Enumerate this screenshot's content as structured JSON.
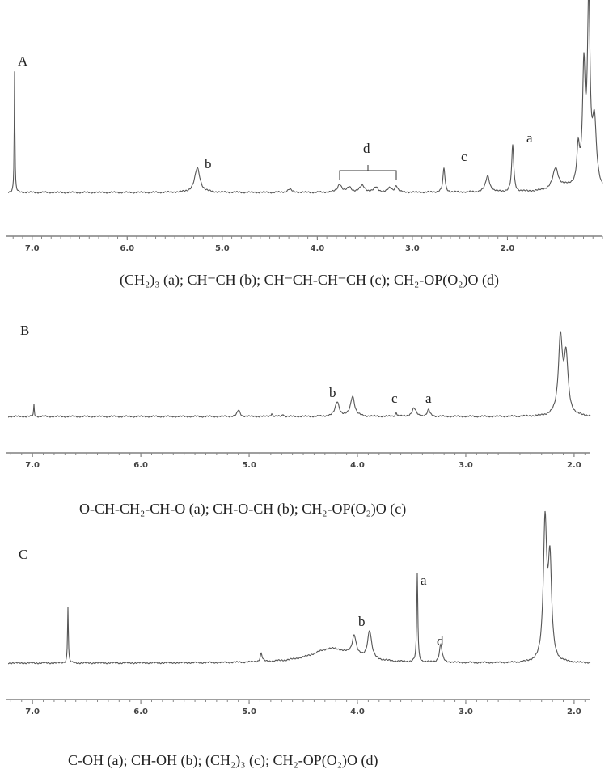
{
  "panels": [
    {
      "label": "A",
      "peak_labels": [
        "b",
        "d",
        "c",
        "a"
      ],
      "xlim": [
        7.27,
        1.0
      ],
      "xticks": [
        {
          "value": 7,
          "label": "7.0"
        },
        {
          "value": 6,
          "label": "6.0"
        },
        {
          "value": 5,
          "label": "5.0"
        },
        {
          "value": 4,
          "label": "4.0"
        },
        {
          "value": 3,
          "label": "3.0"
        },
        {
          "value": 2,
          "label": "2.0"
        }
      ],
      "caption": "(CH₂)₃ (a); CH=CH (b); CH=CH-CH=CH (c); CH₂-OP(O₂)O (d)"
    },
    {
      "label": "B",
      "peak_labels": [
        "b",
        "c",
        "a"
      ],
      "xlim": [
        7.24,
        1.85
      ],
      "xticks": [
        {
          "value": 7,
          "label": "7.0"
        },
        {
          "value": 6,
          "label": "6.0"
        },
        {
          "value": 5,
          "label": "5.0"
        },
        {
          "value": 4,
          "label": "4.0"
        },
        {
          "value": 3,
          "label": "3.0"
        },
        {
          "value": 2,
          "label": "2.0"
        }
      ],
      "caption": "O-CH-CH₂-CH-O (a); CH-O-CH (b); CH₂-OP(O₂)O (c)"
    },
    {
      "label": "C",
      "peak_labels": [
        "a",
        "b",
        "d"
      ],
      "xlim": [
        7.24,
        1.85
      ],
      "xticks": [
        {
          "value": 7,
          "label": "7.0"
        },
        {
          "value": 6,
          "label": "6.0"
        },
        {
          "value": 5,
          "label": "5.0"
        },
        {
          "value": 4,
          "label": "4.0"
        },
        {
          "value": 3,
          "label": "3.0"
        },
        {
          "value": 2,
          "label": "2.0"
        }
      ],
      "caption": "C-OH (a); CH-OH (b);  (CH₂)₃ (c); CH₂-OP(O₂)O (d)"
    }
  ]
}
